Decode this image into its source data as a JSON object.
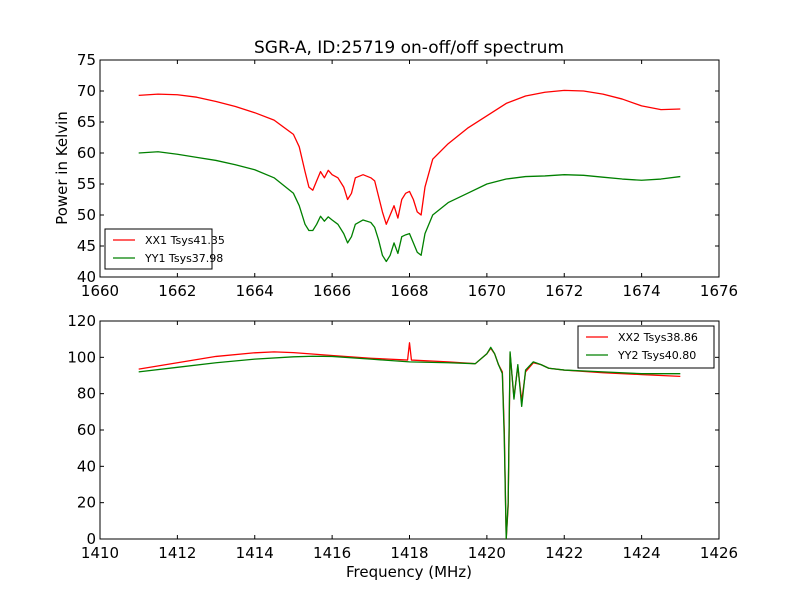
{
  "figure": {
    "title": "SGR-A, ID:25719 on-off/off spectrum"
  },
  "colors": {
    "xx": "#ff0000",
    "yy": "#008000"
  },
  "chart_data": [
    {
      "type": "line",
      "title": "SGR-A, ID:25719 on-off/off spectrum",
      "xlabel": "",
      "ylabel": "Power in Kelvin",
      "xlim": [
        1660,
        1676
      ],
      "ylim": [
        40,
        75
      ],
      "xticks": [
        1660,
        1662,
        1664,
        1666,
        1668,
        1670,
        1672,
        1674,
        1676
      ],
      "yticks": [
        40,
        45,
        50,
        55,
        60,
        65,
        70,
        75
      ],
      "grid": false,
      "legend_position": "lower-left",
      "series": [
        {
          "name": "XX1 Tsys41.35",
          "color": "#ff0000",
          "points": [
            [
              1661.0,
              69.3
            ],
            [
              1661.5,
              69.5
            ],
            [
              1662.0,
              69.4
            ],
            [
              1662.5,
              69.0
            ],
            [
              1663.0,
              68.3
            ],
            [
              1663.5,
              67.5
            ],
            [
              1664.0,
              66.5
            ],
            [
              1664.5,
              65.3
            ],
            [
              1665.0,
              63.0
            ],
            [
              1665.15,
              61.0
            ],
            [
              1665.3,
              57.0
            ],
            [
              1665.4,
              54.5
            ],
            [
              1665.5,
              54.0
            ],
            [
              1665.6,
              55.5
            ],
            [
              1665.7,
              57.0
            ],
            [
              1665.8,
              56.0
            ],
            [
              1665.9,
              57.2
            ],
            [
              1666.0,
              56.5
            ],
            [
              1666.15,
              56.0
            ],
            [
              1666.3,
              54.5
            ],
            [
              1666.4,
              52.5
            ],
            [
              1666.5,
              53.5
            ],
            [
              1666.6,
              56.0
            ],
            [
              1666.8,
              56.5
            ],
            [
              1667.0,
              56.0
            ],
            [
              1667.1,
              55.5
            ],
            [
              1667.2,
              53.0
            ],
            [
              1667.3,
              50.5
            ],
            [
              1667.4,
              48.5
            ],
            [
              1667.5,
              50.0
            ],
            [
              1667.6,
              51.5
            ],
            [
              1667.7,
              49.5
            ],
            [
              1667.8,
              52.5
            ],
            [
              1667.9,
              53.5
            ],
            [
              1668.0,
              53.8
            ],
            [
              1668.1,
              52.5
            ],
            [
              1668.2,
              50.5
            ],
            [
              1668.3,
              50.0
            ],
            [
              1668.4,
              54.5
            ],
            [
              1668.6,
              59.0
            ],
            [
              1669.0,
              61.5
            ],
            [
              1669.5,
              64.0
            ],
            [
              1670.0,
              66.0
            ],
            [
              1670.5,
              68.0
            ],
            [
              1671.0,
              69.2
            ],
            [
              1671.5,
              69.8
            ],
            [
              1672.0,
              70.1
            ],
            [
              1672.5,
              70.0
            ],
            [
              1673.0,
              69.5
            ],
            [
              1673.5,
              68.7
            ],
            [
              1674.0,
              67.6
            ],
            [
              1674.5,
              67.0
            ],
            [
              1675.0,
              67.1
            ]
          ]
        },
        {
          "name": "YY1 Tsys37.98",
          "color": "#008000",
          "points": [
            [
              1661.0,
              60.0
            ],
            [
              1661.5,
              60.2
            ],
            [
              1662.0,
              59.8
            ],
            [
              1662.5,
              59.3
            ],
            [
              1663.0,
              58.8
            ],
            [
              1663.5,
              58.1
            ],
            [
              1664.0,
              57.3
            ],
            [
              1664.5,
              56.0
            ],
            [
              1665.0,
              53.5
            ],
            [
              1665.15,
              51.5
            ],
            [
              1665.3,
              48.5
            ],
            [
              1665.4,
              47.5
            ],
            [
              1665.5,
              47.5
            ],
            [
              1665.6,
              48.5
            ],
            [
              1665.7,
              49.8
            ],
            [
              1665.8,
              49.0
            ],
            [
              1665.9,
              49.7
            ],
            [
              1666.0,
              49.2
            ],
            [
              1666.15,
              48.5
            ],
            [
              1666.3,
              47.0
            ],
            [
              1666.4,
              45.5
            ],
            [
              1666.5,
              46.5
            ],
            [
              1666.6,
              48.5
            ],
            [
              1666.8,
              49.2
            ],
            [
              1667.0,
              48.8
            ],
            [
              1667.1,
              48.0
            ],
            [
              1667.2,
              46.0
            ],
            [
              1667.3,
              43.5
            ],
            [
              1667.4,
              42.5
            ],
            [
              1667.5,
              43.5
            ],
            [
              1667.6,
              45.5
            ],
            [
              1667.7,
              43.8
            ],
            [
              1667.8,
              46.5
            ],
            [
              1667.9,
              46.8
            ],
            [
              1668.0,
              47.0
            ],
            [
              1668.1,
              45.5
            ],
            [
              1668.2,
              44.0
            ],
            [
              1668.3,
              43.5
            ],
            [
              1668.4,
              47.0
            ],
            [
              1668.6,
              50.0
            ],
            [
              1669.0,
              52.0
            ],
            [
              1669.5,
              53.5
            ],
            [
              1670.0,
              55.0
            ],
            [
              1670.5,
              55.8
            ],
            [
              1671.0,
              56.2
            ],
            [
              1671.5,
              56.3
            ],
            [
              1672.0,
              56.5
            ],
            [
              1672.5,
              56.4
            ],
            [
              1673.0,
              56.1
            ],
            [
              1673.5,
              55.8
            ],
            [
              1674.0,
              55.6
            ],
            [
              1674.5,
              55.8
            ],
            [
              1675.0,
              56.2
            ]
          ]
        }
      ]
    },
    {
      "type": "line",
      "title": "",
      "xlabel": "Frequency (MHz)",
      "ylabel": "",
      "xlim": [
        1410,
        1426
      ],
      "ylim": [
        0,
        120
      ],
      "xticks": [
        1410,
        1412,
        1414,
        1416,
        1418,
        1420,
        1422,
        1424,
        1426
      ],
      "yticks": [
        0,
        20,
        40,
        60,
        80,
        100,
        120
      ],
      "grid": false,
      "legend_position": "top-right",
      "series": [
        {
          "name": "XX2 Tsys38.86",
          "color": "#ff0000",
          "points": [
            [
              1411.0,
              93.5
            ],
            [
              1412.0,
              97.0
            ],
            [
              1413.0,
              100.5
            ],
            [
              1414.0,
              102.5
            ],
            [
              1414.5,
              103.0
            ],
            [
              1415.0,
              102.6
            ],
            [
              1416.0,
              101.0
            ],
            [
              1417.0,
              99.5
            ],
            [
              1417.95,
              98.5
            ],
            [
              1418.0,
              108.0
            ],
            [
              1418.05,
              98.5
            ],
            [
              1419.0,
              97.5
            ],
            [
              1419.7,
              96.5
            ],
            [
              1420.0,
              102.0
            ],
            [
              1420.1,
              105.0
            ],
            [
              1420.2,
              102.0
            ],
            [
              1420.3,
              96.0
            ],
            [
              1420.4,
              92.0
            ],
            [
              1420.45,
              60.0
            ],
            [
              1420.5,
              0.0
            ],
            [
              1420.55,
              18.0
            ],
            [
              1420.6,
              102.0
            ],
            [
              1420.7,
              78.0
            ],
            [
              1420.8,
              95.0
            ],
            [
              1420.9,
              76.0
            ],
            [
              1421.0,
              92.0
            ],
            [
              1421.2,
              97.0
            ],
            [
              1421.4,
              96.0
            ],
            [
              1421.6,
              94.0
            ],
            [
              1422.0,
              93.0
            ],
            [
              1423.0,
              91.5
            ],
            [
              1424.0,
              90.5
            ],
            [
              1425.0,
              89.5
            ]
          ]
        },
        {
          "name": "YY2 Tsys40.80",
          "color": "#008000",
          "points": [
            [
              1411.0,
              92.0
            ],
            [
              1412.0,
              94.5
            ],
            [
              1413.0,
              97.0
            ],
            [
              1414.0,
              99.0
            ],
            [
              1415.0,
              100.3
            ],
            [
              1415.5,
              100.6
            ],
            [
              1416.0,
              100.5
            ],
            [
              1417.0,
              99.0
            ],
            [
              1418.0,
              97.5
            ],
            [
              1419.0,
              97.0
            ],
            [
              1419.7,
              96.5
            ],
            [
              1420.0,
              102.0
            ],
            [
              1420.1,
              105.5
            ],
            [
              1420.2,
              102.0
            ],
            [
              1420.3,
              96.0
            ],
            [
              1420.4,
              91.0
            ],
            [
              1420.45,
              55.0
            ],
            [
              1420.5,
              0.0
            ],
            [
              1420.55,
              20.0
            ],
            [
              1420.6,
              103.0
            ],
            [
              1420.7,
              77.0
            ],
            [
              1420.8,
              96.0
            ],
            [
              1420.9,
              73.0
            ],
            [
              1421.0,
              93.0
            ],
            [
              1421.2,
              97.5
            ],
            [
              1421.4,
              96.0
            ],
            [
              1421.6,
              94.0
            ],
            [
              1422.0,
              93.0
            ],
            [
              1423.0,
              92.0
            ],
            [
              1424.0,
              91.0
            ],
            [
              1425.0,
              91.0
            ]
          ]
        }
      ]
    }
  ]
}
